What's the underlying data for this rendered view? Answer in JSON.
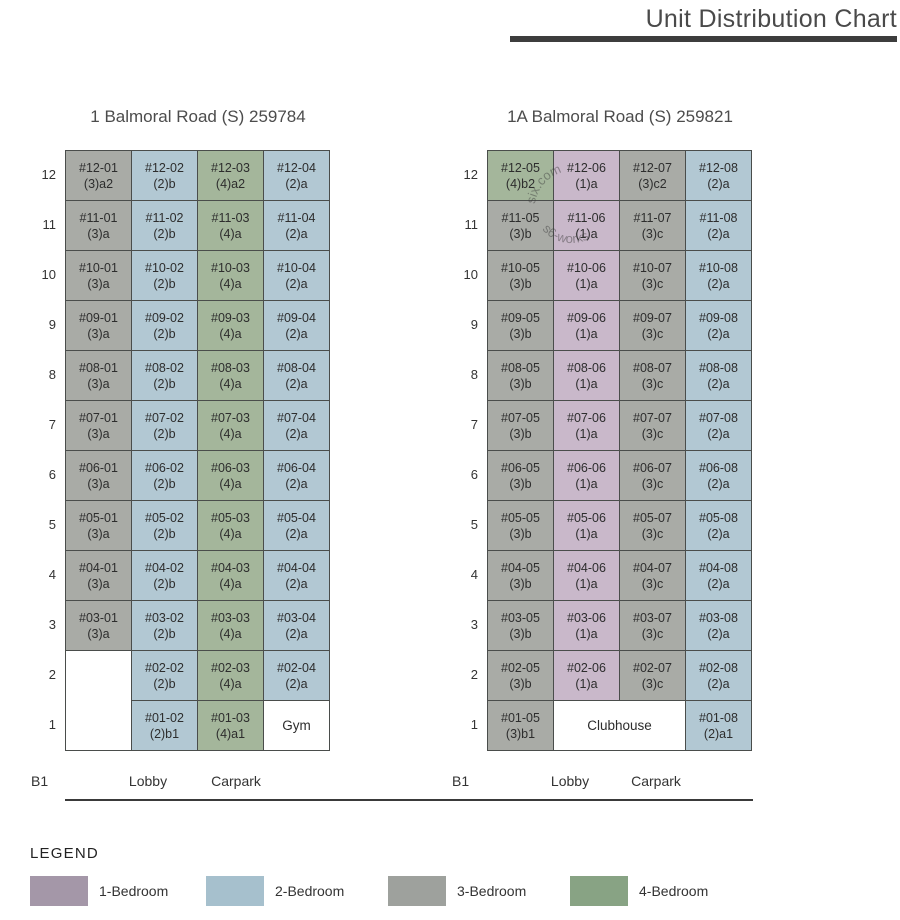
{
  "header": {
    "title": "Unit Distribution Chart"
  },
  "colors": {
    "border": "#4a4d4b",
    "title_bar": "#3d3d3d",
    "base_line": "#3a3a3a",
    "cell": {
      "1BR": "#c9b8ca",
      "2BR": "#b2c8d3",
      "3BR": "#a9aba6",
      "4BR": "#a4b69b",
      "amenity": "#ffffff",
      "blank": "#ffffff"
    },
    "legend": {
      "1BR": "#a497a8",
      "2BR": "#a6c0cd",
      "3BR": "#9ea19d",
      "4BR": "#88a384"
    }
  },
  "watermark": {
    "arc_text_top": "six.com",
    "arc_text_bottom": "s6-works"
  },
  "legend": {
    "title": "LEGEND",
    "items": [
      {
        "label": "1-Bedroom",
        "cat": "1BR"
      },
      {
        "label": "2-Bedroom",
        "cat": "2BR"
      },
      {
        "label": "3-Bedroom",
        "cat": "3BR"
      },
      {
        "label": "4-Bedroom",
        "cat": "4BR"
      }
    ]
  },
  "chart_data": {
    "type": "table",
    "title": "Unit Distribution Chart",
    "buildings": [
      {
        "title": "1 Balmoral Road (S) 259784",
        "basement": {
          "label": "B1",
          "areas": [
            "Lobby",
            "Carpark"
          ]
        },
        "floors": [
          {
            "level": "12",
            "cells": [
              {
                "u": "#12-01",
                "t": "(3)a2",
                "c": "3BR"
              },
              {
                "u": "#12-02",
                "t": "(2)b",
                "c": "2BR"
              },
              {
                "u": "#12-03",
                "t": "(4)a2",
                "c": "4BR"
              },
              {
                "u": "#12-04",
                "t": "(2)a",
                "c": "2BR"
              }
            ]
          },
          {
            "level": "11",
            "cells": [
              {
                "u": "#11-01",
                "t": "(3)a",
                "c": "3BR"
              },
              {
                "u": "#11-02",
                "t": "(2)b",
                "c": "2BR"
              },
              {
                "u": "#11-03",
                "t": "(4)a",
                "c": "4BR"
              },
              {
                "u": "#11-04",
                "t": "(2)a",
                "c": "2BR"
              }
            ]
          },
          {
            "level": "10",
            "cells": [
              {
                "u": "#10-01",
                "t": "(3)a",
                "c": "3BR"
              },
              {
                "u": "#10-02",
                "t": "(2)b",
                "c": "2BR"
              },
              {
                "u": "#10-03",
                "t": "(4)a",
                "c": "4BR"
              },
              {
                "u": "#10-04",
                "t": "(2)a",
                "c": "2BR"
              }
            ]
          },
          {
            "level": "9",
            "cells": [
              {
                "u": "#09-01",
                "t": "(3)a",
                "c": "3BR"
              },
              {
                "u": "#09-02",
                "t": "(2)b",
                "c": "2BR"
              },
              {
                "u": "#09-03",
                "t": "(4)a",
                "c": "4BR"
              },
              {
                "u": "#09-04",
                "t": "(2)a",
                "c": "2BR"
              }
            ]
          },
          {
            "level": "8",
            "cells": [
              {
                "u": "#08-01",
                "t": "(3)a",
                "c": "3BR"
              },
              {
                "u": "#08-02",
                "t": "(2)b",
                "c": "2BR"
              },
              {
                "u": "#08-03",
                "t": "(4)a",
                "c": "4BR"
              },
              {
                "u": "#08-04",
                "t": "(2)a",
                "c": "2BR"
              }
            ]
          },
          {
            "level": "7",
            "cells": [
              {
                "u": "#07-01",
                "t": "(3)a",
                "c": "3BR"
              },
              {
                "u": "#07-02",
                "t": "(2)b",
                "c": "2BR"
              },
              {
                "u": "#07-03",
                "t": "(4)a",
                "c": "4BR"
              },
              {
                "u": "#07-04",
                "t": "(2)a",
                "c": "2BR"
              }
            ]
          },
          {
            "level": "6",
            "cells": [
              {
                "u": "#06-01",
                "t": "(3)a",
                "c": "3BR"
              },
              {
                "u": "#06-02",
                "t": "(2)b",
                "c": "2BR"
              },
              {
                "u": "#06-03",
                "t": "(4)a",
                "c": "4BR"
              },
              {
                "u": "#06-04",
                "t": "(2)a",
                "c": "2BR"
              }
            ]
          },
          {
            "level": "5",
            "cells": [
              {
                "u": "#05-01",
                "t": "(3)a",
                "c": "3BR"
              },
              {
                "u": "#05-02",
                "t": "(2)b",
                "c": "2BR"
              },
              {
                "u": "#05-03",
                "t": "(4)a",
                "c": "4BR"
              },
              {
                "u": "#05-04",
                "t": "(2)a",
                "c": "2BR"
              }
            ]
          },
          {
            "level": "4",
            "cells": [
              {
                "u": "#04-01",
                "t": "(3)a",
                "c": "3BR"
              },
              {
                "u": "#04-02",
                "t": "(2)b",
                "c": "2BR"
              },
              {
                "u": "#04-03",
                "t": "(4)a",
                "c": "4BR"
              },
              {
                "u": "#04-04",
                "t": "(2)a",
                "c": "2BR"
              }
            ]
          },
          {
            "level": "3",
            "cells": [
              {
                "u": "#03-01",
                "t": "(3)a",
                "c": "3BR"
              },
              {
                "u": "#03-02",
                "t": "(2)b",
                "c": "2BR"
              },
              {
                "u": "#03-03",
                "t": "(4)a",
                "c": "4BR"
              },
              {
                "u": "#03-04",
                "t": "(2)a",
                "c": "2BR"
              }
            ]
          },
          {
            "level": "2",
            "cells": [
              {
                "blank": true,
                "rs": 2
              },
              {
                "u": "#02-02",
                "t": "(2)b",
                "c": "2BR"
              },
              {
                "u": "#02-03",
                "t": "(4)a",
                "c": "4BR"
              },
              {
                "u": "#02-04",
                "t": "(2)a",
                "c": "2BR"
              }
            ]
          },
          {
            "level": "1",
            "cells": [
              {
                "u": "#01-02",
                "t": "(2)b1",
                "c": "2BR"
              },
              {
                "u": "#01-03",
                "t": "(4)a1",
                "c": "4BR"
              },
              {
                "u": "Gym",
                "amenity": true
              }
            ]
          }
        ]
      },
      {
        "title": "1A Balmoral Road (S) 259821",
        "basement": {
          "label": "B1",
          "areas": [
            "Lobby",
            "Carpark"
          ]
        },
        "floors": [
          {
            "level": "12",
            "cells": [
              {
                "u": "#12-05",
                "t": "(4)b2",
                "c": "4BR"
              },
              {
                "u": "#12-06",
                "t": "(1)a",
                "c": "1BR"
              },
              {
                "u": "#12-07",
                "t": "(3)c2",
                "c": "3BR"
              },
              {
                "u": "#12-08",
                "t": "(2)a",
                "c": "2BR"
              }
            ]
          },
          {
            "level": "11",
            "cells": [
              {
                "u": "#11-05",
                "t": "(3)b",
                "c": "3BR"
              },
              {
                "u": "#11-06",
                "t": "(1)a",
                "c": "1BR"
              },
              {
                "u": "#11-07",
                "t": "(3)c",
                "c": "3BR"
              },
              {
                "u": "#11-08",
                "t": "(2)a",
                "c": "2BR"
              }
            ]
          },
          {
            "level": "10",
            "cells": [
              {
                "u": "#10-05",
                "t": "(3)b",
                "c": "3BR"
              },
              {
                "u": "#10-06",
                "t": "(1)a",
                "c": "1BR"
              },
              {
                "u": "#10-07",
                "t": "(3)c",
                "c": "3BR"
              },
              {
                "u": "#10-08",
                "t": "(2)a",
                "c": "2BR"
              }
            ]
          },
          {
            "level": "9",
            "cells": [
              {
                "u": "#09-05",
                "t": "(3)b",
                "c": "3BR"
              },
              {
                "u": "#09-06",
                "t": "(1)a",
                "c": "1BR"
              },
              {
                "u": "#09-07",
                "t": "(3)c",
                "c": "3BR"
              },
              {
                "u": "#09-08",
                "t": "(2)a",
                "c": "2BR"
              }
            ]
          },
          {
            "level": "8",
            "cells": [
              {
                "u": "#08-05",
                "t": "(3)b",
                "c": "3BR"
              },
              {
                "u": "#08-06",
                "t": "(1)a",
                "c": "1BR"
              },
              {
                "u": "#08-07",
                "t": "(3)c",
                "c": "3BR"
              },
              {
                "u": "#08-08",
                "t": "(2)a",
                "c": "2BR"
              }
            ]
          },
          {
            "level": "7",
            "cells": [
              {
                "u": "#07-05",
                "t": "(3)b",
                "c": "3BR"
              },
              {
                "u": "#07-06",
                "t": "(1)a",
                "c": "1BR"
              },
              {
                "u": "#07-07",
                "t": "(3)c",
                "c": "3BR"
              },
              {
                "u": "#07-08",
                "t": "(2)a",
                "c": "2BR"
              }
            ]
          },
          {
            "level": "6",
            "cells": [
              {
                "u": "#06-05",
                "t": "(3)b",
                "c": "3BR"
              },
              {
                "u": "#06-06",
                "t": "(1)a",
                "c": "1BR"
              },
              {
                "u": "#06-07",
                "t": "(3)c",
                "c": "3BR"
              },
              {
                "u": "#06-08",
                "t": "(2)a",
                "c": "2BR"
              }
            ]
          },
          {
            "level": "5",
            "cells": [
              {
                "u": "#05-05",
                "t": "(3)b",
                "c": "3BR"
              },
              {
                "u": "#05-06",
                "t": "(1)a",
                "c": "1BR"
              },
              {
                "u": "#05-07",
                "t": "(3)c",
                "c": "3BR"
              },
              {
                "u": "#05-08",
                "t": "(2)a",
                "c": "2BR"
              }
            ]
          },
          {
            "level": "4",
            "cells": [
              {
                "u": "#04-05",
                "t": "(3)b",
                "c": "3BR"
              },
              {
                "u": "#04-06",
                "t": "(1)a",
                "c": "1BR"
              },
              {
                "u": "#04-07",
                "t": "(3)c",
                "c": "3BR"
              },
              {
                "u": "#04-08",
                "t": "(2)a",
                "c": "2BR"
              }
            ]
          },
          {
            "level": "3",
            "cells": [
              {
                "u": "#03-05",
                "t": "(3)b",
                "c": "3BR"
              },
              {
                "u": "#03-06",
                "t": "(1)a",
                "c": "1BR"
              },
              {
                "u": "#03-07",
                "t": "(3)c",
                "c": "3BR"
              },
              {
                "u": "#03-08",
                "t": "(2)a",
                "c": "2BR"
              }
            ]
          },
          {
            "level": "2",
            "cells": [
              {
                "u": "#02-05",
                "t": "(3)b",
                "c": "3BR"
              },
              {
                "u": "#02-06",
                "t": "(1)a",
                "c": "1BR"
              },
              {
                "u": "#02-07",
                "t": "(3)c",
                "c": "3BR"
              },
              {
                "u": "#02-08",
                "t": "(2)a",
                "c": "2BR"
              }
            ]
          },
          {
            "level": "1",
            "cells": [
              {
                "u": "#01-05",
                "t": "(3)b1",
                "c": "3BR"
              },
              {
                "u": "Clubhouse",
                "amenity": true,
                "cs": 2
              },
              {
                "u": "#01-08",
                "t": "(2)a1",
                "c": "2BR"
              }
            ]
          }
        ]
      }
    ]
  }
}
